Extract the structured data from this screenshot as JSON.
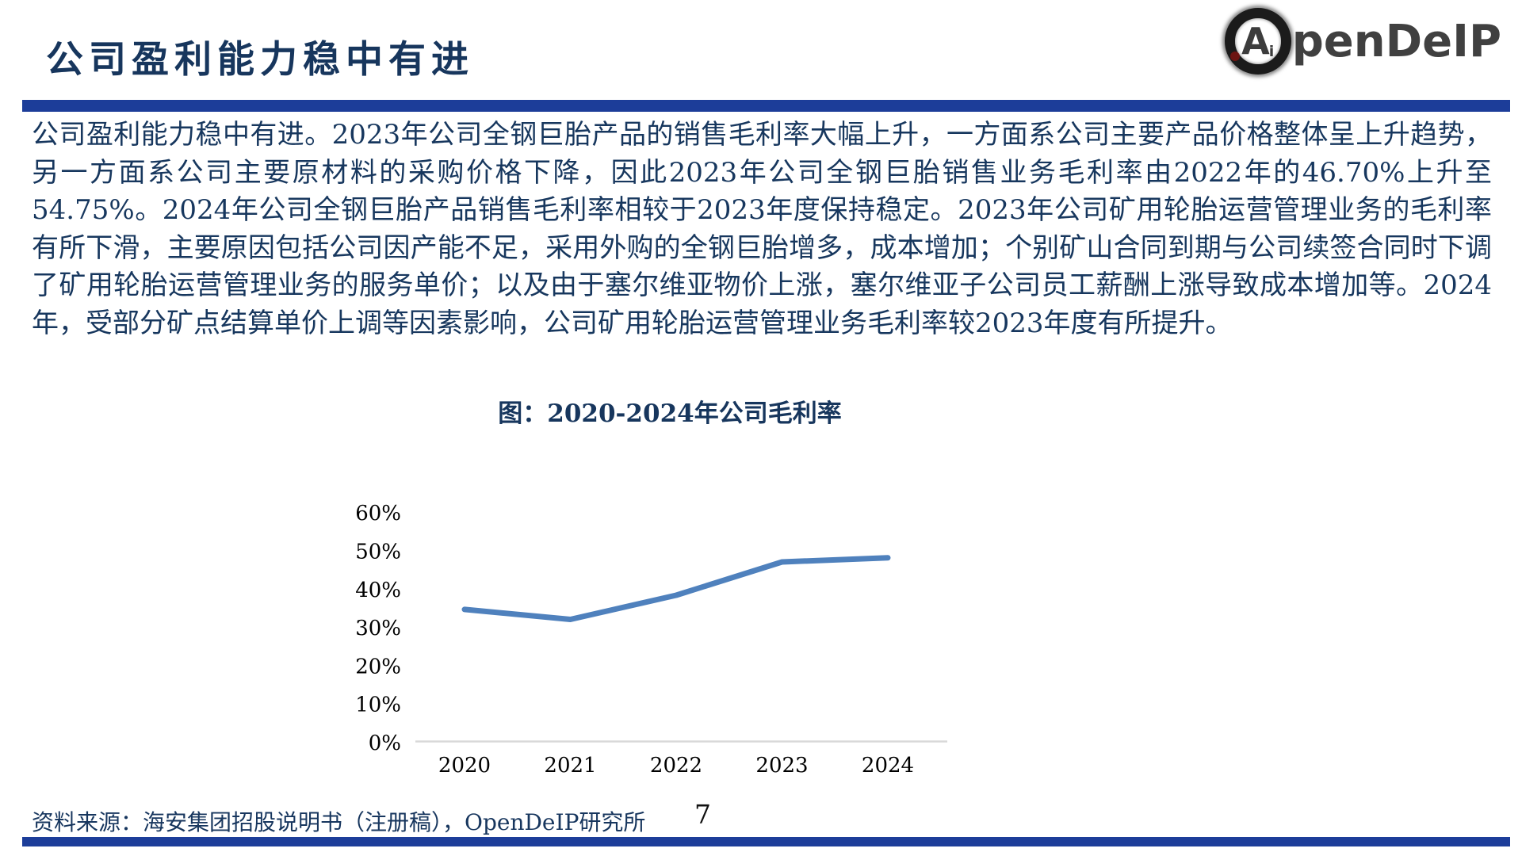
{
  "header": {
    "title": "公司盈利能力稳中有进",
    "logo": {
      "a": "A",
      "i": "i",
      "text": "penDeIP"
    }
  },
  "body": {
    "paragraph": "公司盈利能力稳中有进。2023年公司全钢巨胎产品的销售毛利率大幅上升，一方面系公司主要产品价格整体呈上升趋势，另一方面系公司主要原材料的采购价格下降，因此2023年公司全钢巨胎销售业务毛利率由2022年的46.70%上升至54.75%。2024年公司全钢巨胎产品销售毛利率相较于2023年度保持稳定。2023年公司矿用轮胎运营管理业务的毛利率有所下滑，主要原因包括公司因产能不足，采用外购的全钢巨胎增多，成本增加；个别矿山合同到期与公司续签合同时下调了矿用轮胎运营管理业务的服务单价；以及由于塞尔维亚物价上涨，塞尔维亚子公司员工薪酬上涨导致成本增加等。2024年，受部分矿点结算单价上调等因素影响，公司矿用轮胎运营管理业务毛利率较2023年度有所提升。"
  },
  "chart_data": {
    "type": "line",
    "title": "图：2020-2024年公司毛利率",
    "categories": [
      "2020",
      "2021",
      "2022",
      "2023",
      "2024"
    ],
    "series": [
      {
        "name": "公司毛利率",
        "values": [
          34.8,
          32.2,
          38.5,
          47.2,
          48.3
        ]
      }
    ],
    "yticks": [
      "0%",
      "10%",
      "20%",
      "30%",
      "40%",
      "50%",
      "60%"
    ],
    "ylim": [
      0,
      60
    ],
    "grid": false,
    "legend": "none",
    "line_color": "#4F81BD",
    "axis_color": "#D9D9D9",
    "tick_text_color": "#000000"
  },
  "footer": {
    "source": "资料来源：海安集团招股说明书（注册稿），OpenDeIP研究所",
    "page_number": "7"
  },
  "colors": {
    "accent_bar": "#1C3D99",
    "title_text": "#17365D",
    "body_text": "#17375E"
  }
}
